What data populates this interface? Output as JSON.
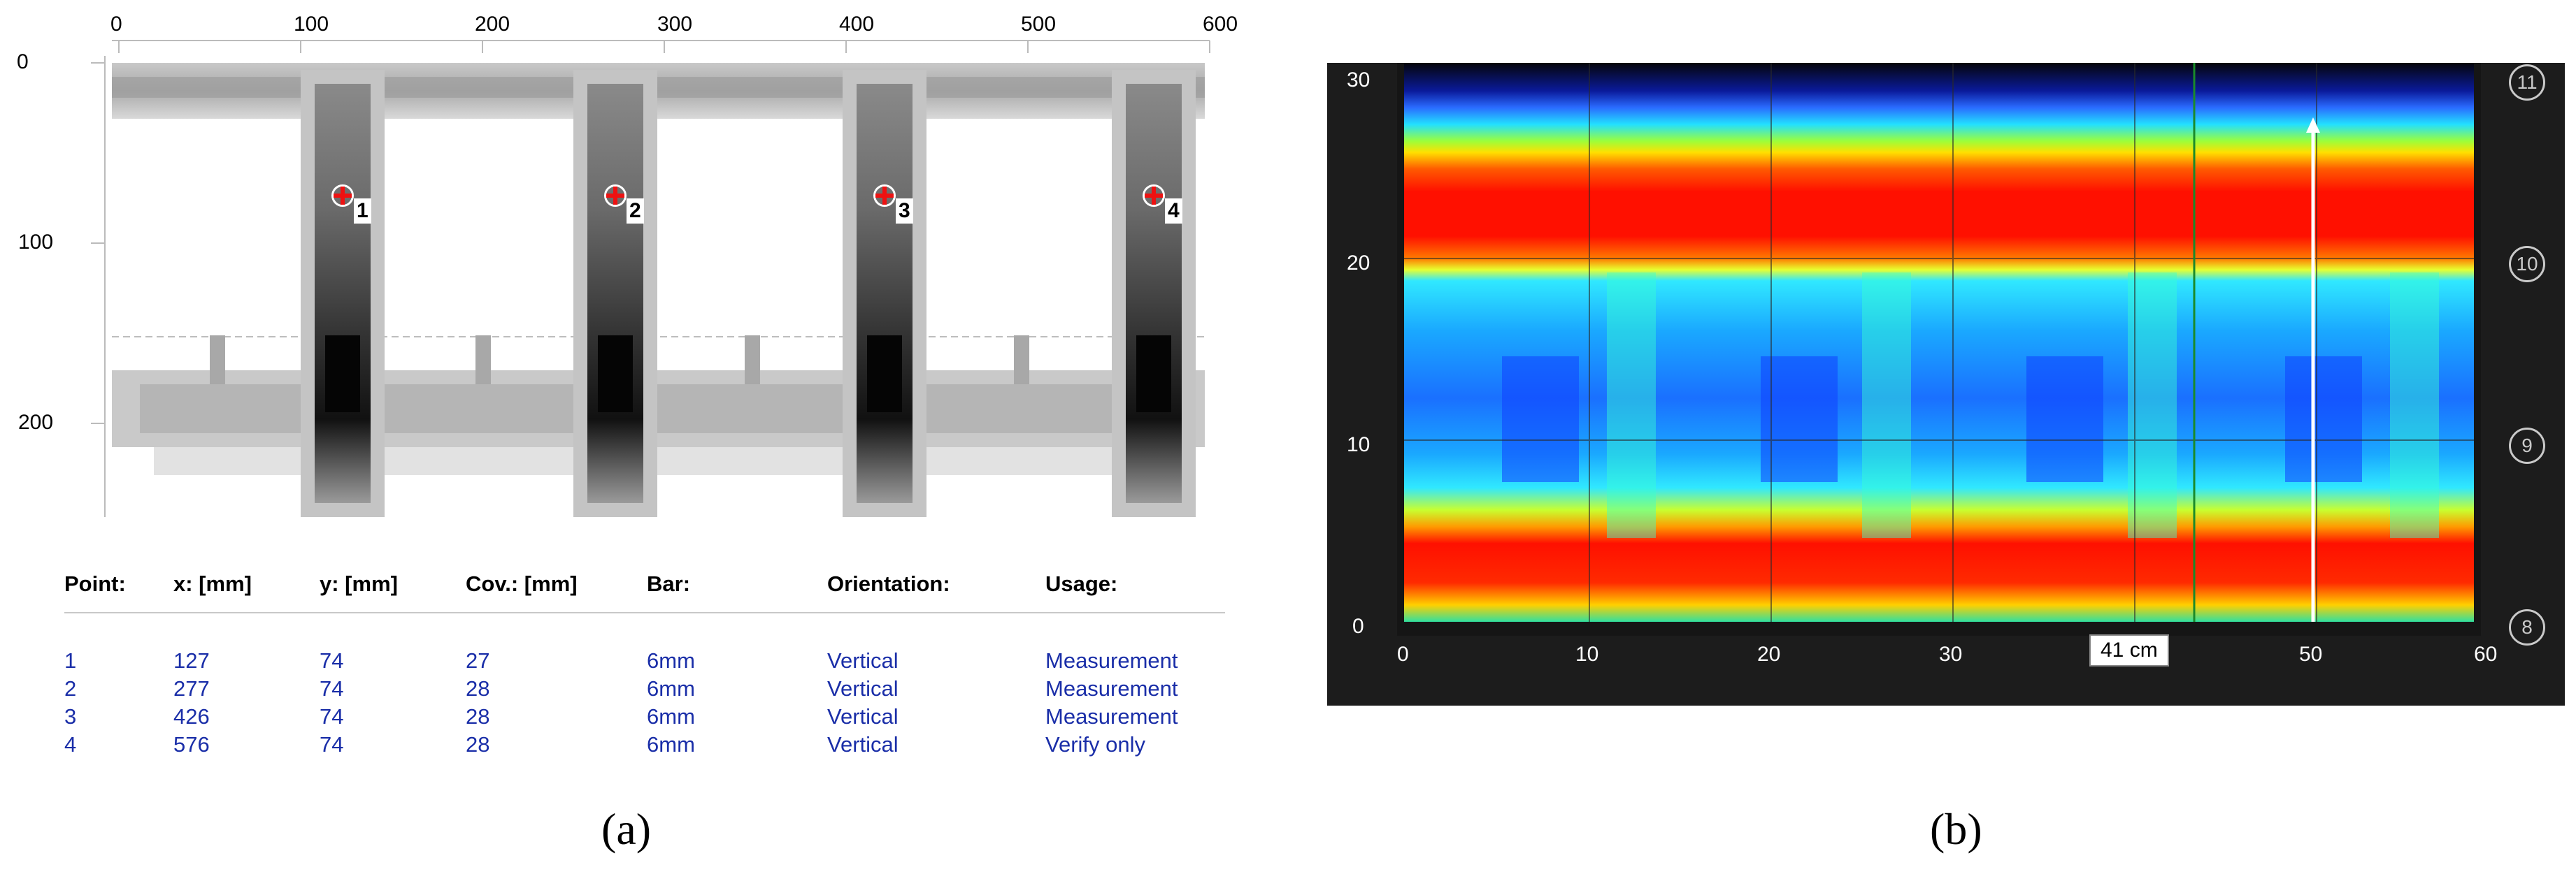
{
  "panel_a": {
    "x_ticks": [
      "0",
      "100",
      "200",
      "300",
      "400",
      "500",
      "600"
    ],
    "y_ticks": [
      "0",
      "100",
      "200"
    ],
    "markers": [
      "1",
      "2",
      "3",
      "4"
    ],
    "table": {
      "headers": [
        "Point:",
        "x: [mm]",
        "y: [mm]",
        "Cov.: [mm]",
        "Bar:",
        "Orientation:",
        "Usage:"
      ],
      "rows": [
        [
          "1",
          "127",
          "74",
          "27",
          "6mm",
          "Vertical",
          "Measurement"
        ],
        [
          "2",
          "277",
          "74",
          "28",
          "6mm",
          "Vertical",
          "Measurement"
        ],
        [
          "3",
          "426",
          "74",
          "28",
          "6mm",
          "Vertical",
          "Measurement"
        ],
        [
          "4",
          "576",
          "74",
          "28",
          "6mm",
          "Vertical",
          "Verify only"
        ]
      ]
    },
    "caption": "(a)"
  },
  "panel_b": {
    "x_ticks": [
      "0",
      "10",
      "20",
      "30",
      "40",
      "50",
      "60"
    ],
    "y_ticks": [
      "30",
      "20",
      "10",
      "0"
    ],
    "right_circles": [
      "11",
      "10",
      "9",
      "8"
    ],
    "cursor_label": "41 cm",
    "caption": "(b)"
  },
  "colors": {
    "table_text": "#1a2ea8",
    "marker_red": "#e11111",
    "heat_red": "#ff1a00",
    "heat_cyan": "#18d8ff",
    "heat_blue": "#1050ff"
  }
}
